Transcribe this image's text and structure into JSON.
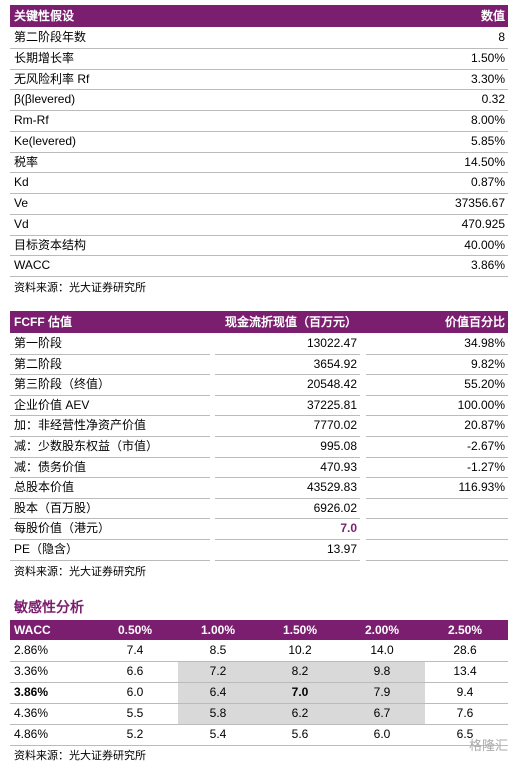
{
  "table1": {
    "header": [
      "关键性假设",
      "数值"
    ],
    "rows": [
      [
        "第二阶段年数",
        "8"
      ],
      [
        "长期增长率",
        "1.50%"
      ],
      [
        "无风险利率 Rf",
        "3.30%"
      ],
      [
        "β(βlevered)",
        "0.32"
      ],
      [
        "Rm-Rf",
        "8.00%"
      ],
      [
        "Ke(levered)",
        "5.85%"
      ],
      [
        "税率",
        "14.50%"
      ],
      [
        "Kd",
        "0.87%"
      ],
      [
        "Ve",
        "37356.67"
      ],
      [
        "Vd",
        "470.925"
      ],
      [
        "目标资本结构",
        "40.00%"
      ],
      [
        "WACC",
        "3.86%"
      ]
    ],
    "source": "资料来源：光大证券研究所"
  },
  "table2": {
    "header": [
      "FCFF 估值",
      "现金流折现值（百万元）",
      "价值百分比"
    ],
    "rows": [
      [
        "第一阶段",
        "13022.47",
        "34.98%"
      ],
      [
        "第二阶段",
        "3654.92",
        "9.82%"
      ],
      [
        "第三阶段（终值）",
        "20548.42",
        "55.20%"
      ],
      [
        "企业价值 AEV",
        "37225.81",
        "100.00%"
      ],
      [
        "加：非经营性净资产价值",
        "7770.02",
        "20.87%"
      ],
      [
        "减：少数股东权益（市值）",
        "995.08",
        "-2.67%"
      ],
      [
        "减：债务价值",
        "470.93",
        "-1.27%"
      ],
      [
        "总股本价值",
        "43529.83",
        "116.93%"
      ],
      [
        "股本（百万股）",
        "6926.02",
        null
      ],
      [
        "每股价值（港元）",
        "7.0",
        null
      ],
      [
        "PE（隐含）",
        "13.97",
        null
      ]
    ],
    "source": "资料来源：光大证券研究所"
  },
  "sensitivity": {
    "title": "敏感性分析",
    "header": [
      "WACC",
      "0.50%",
      "1.00%",
      "1.50%",
      "2.00%",
      "2.50%"
    ],
    "rows": [
      [
        "2.86%",
        "7.4",
        "8.5",
        "10.2",
        "14.0",
        "28.6"
      ],
      [
        "3.36%",
        "6.6",
        "7.2",
        "8.2",
        "9.8",
        "13.4"
      ],
      [
        "3.86%",
        "6.0",
        "6.4",
        "7.0",
        "7.9",
        "9.4"
      ],
      [
        "4.36%",
        "5.5",
        "5.8",
        "6.2",
        "6.7",
        "7.6"
      ],
      [
        "4.86%",
        "5.2",
        "5.4",
        "5.6",
        "6.0",
        "6.5"
      ]
    ],
    "source": "资料来源：光大证券研究所"
  },
  "watermark": "格隆汇"
}
